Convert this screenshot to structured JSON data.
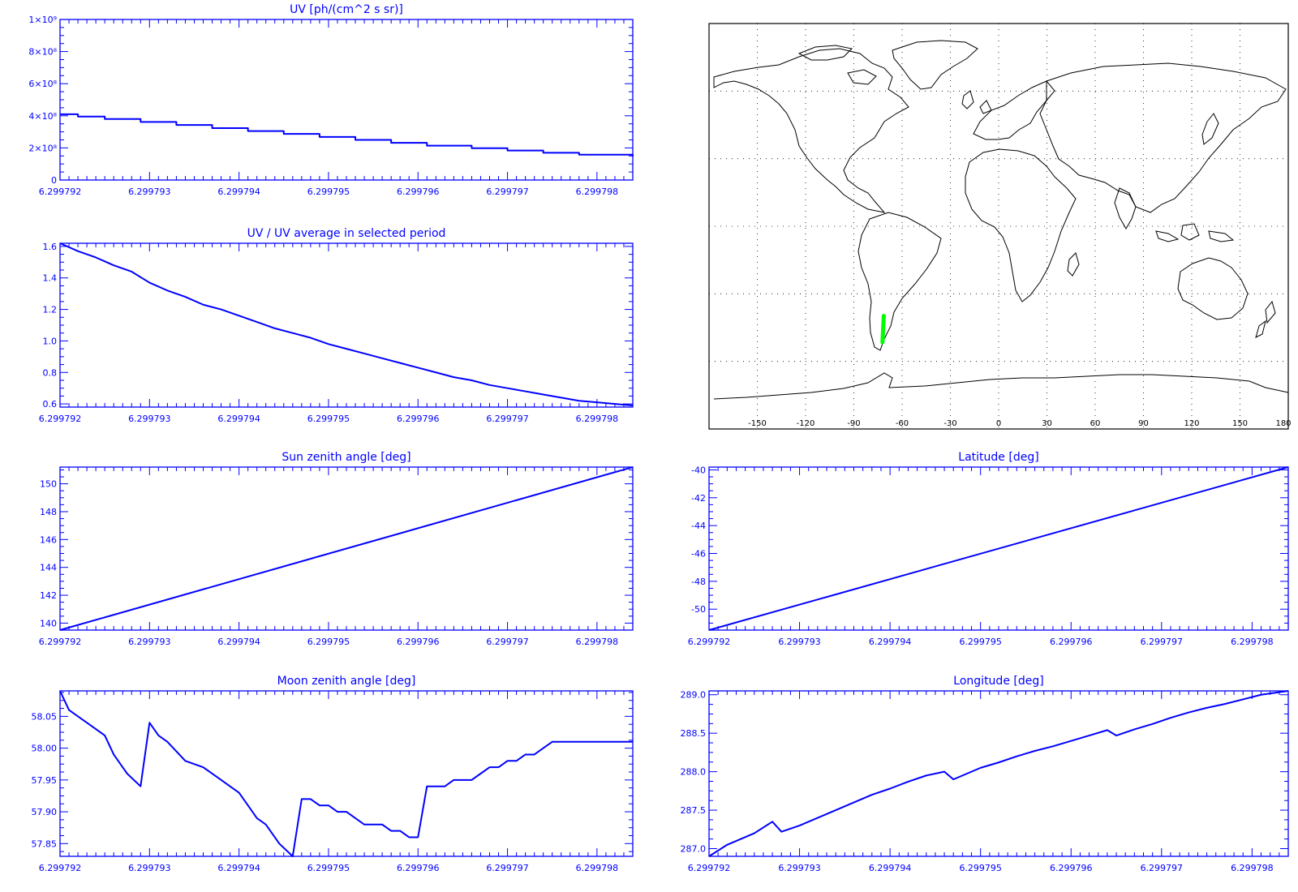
{
  "colors": {
    "axis": "#0000ff",
    "series": "#0000ff",
    "map_outline": "#000000",
    "track": "#00ff00"
  },
  "chart_data": [
    {
      "id": "uv",
      "type": "line",
      "step": true,
      "title": "UV [ph/(cm^2 s sr)]",
      "xlabel": "",
      "ylabel": "",
      "xlim": [
        6.299792,
        6.2997984
      ],
      "ylim": [
        0,
        1000000000
      ],
      "xticks": [
        6.299792,
        6.299793,
        6.299794,
        6.299795,
        6.299796,
        6.299797,
        6.299798
      ],
      "xtick_labels": [
        "6.299792",
        "6.299793",
        "6.299794",
        "6.299795",
        "6.299796",
        "6.299797",
        "6.299798"
      ],
      "yticks": [
        0,
        200000000,
        400000000,
        600000000,
        800000000,
        1000000000
      ],
      "ytick_labels": [
        "0",
        "2×10⁸",
        "4×10⁸",
        "6×10⁸",
        "8×10⁸",
        "1×10⁹"
      ],
      "series": [
        {
          "x": [
            6.299792,
            6.2997922,
            6.2997925,
            6.2997929,
            6.2997933,
            6.2997937,
            6.2997941,
            6.2997945,
            6.2997949,
            6.2997953,
            6.2997957,
            6.2997961,
            6.2997966,
            6.299797,
            6.2997974,
            6.2997978,
            6.2997984
          ],
          "y": [
            410000000,
            395000000,
            380000000,
            362000000,
            343000000,
            323000000,
            305000000,
            287000000,
            268000000,
            250000000,
            232000000,
            214000000,
            198000000,
            184000000,
            170000000,
            158000000,
            148000000
          ]
        }
      ]
    },
    {
      "id": "uvratio",
      "type": "line",
      "title": "UV / UV average in selected period",
      "xlabel": "",
      "ylabel": "",
      "xlim": [
        6.299792,
        6.2997984
      ],
      "ylim": [
        0.58,
        1.62
      ],
      "xticks": [
        6.299792,
        6.299793,
        6.299794,
        6.299795,
        6.299796,
        6.299797,
        6.299798
      ],
      "xtick_labels": [
        "6.299792",
        "6.299793",
        "6.299794",
        "6.299795",
        "6.299796",
        "6.299797",
        "6.299798"
      ],
      "yticks": [
        0.6,
        0.8,
        1.0,
        1.2,
        1.4,
        1.6
      ],
      "ytick_labels": [
        "0.6",
        "0.8",
        "1.0",
        "1.2",
        "1.4",
        "1.6"
      ],
      "series": [
        {
          "x": [
            6.299792,
            6.2997922,
            6.2997924,
            6.2997926,
            6.2997928,
            6.299793,
            6.2997932,
            6.2997934,
            6.2997936,
            6.2997938,
            6.299794,
            6.2997942,
            6.2997944,
            6.2997946,
            6.2997948,
            6.299795,
            6.2997952,
            6.2997954,
            6.2997956,
            6.2997958,
            6.299796,
            6.2997962,
            6.2997964,
            6.2997966,
            6.2997968,
            6.299797,
            6.2997972,
            6.2997974,
            6.2997976,
            6.2997978,
            6.299798,
            6.2997982,
            6.2997984
          ],
          "y": [
            1.62,
            1.57,
            1.53,
            1.48,
            1.44,
            1.37,
            1.32,
            1.28,
            1.23,
            1.2,
            1.16,
            1.12,
            1.08,
            1.05,
            1.02,
            0.98,
            0.95,
            0.92,
            0.89,
            0.86,
            0.83,
            0.8,
            0.77,
            0.75,
            0.72,
            0.7,
            0.68,
            0.66,
            0.64,
            0.62,
            0.61,
            0.6,
            0.59
          ]
        }
      ]
    },
    {
      "id": "sza",
      "type": "line",
      "title": "Sun zenith angle [deg]",
      "xlabel": "",
      "ylabel": "",
      "xlim": [
        6.299792,
        6.2997984
      ],
      "ylim": [
        139.5,
        151.2
      ],
      "xticks": [
        6.299792,
        6.299793,
        6.299794,
        6.299795,
        6.299796,
        6.299797,
        6.299798
      ],
      "xtick_labels": [
        "6.299792",
        "6.299793",
        "6.299794",
        "6.299795",
        "6.299796",
        "6.299797",
        "6.299798"
      ],
      "yticks": [
        140,
        142,
        144,
        146,
        148,
        150
      ],
      "ytick_labels": [
        "140",
        "142",
        "144",
        "146",
        "148",
        "150"
      ],
      "series": [
        {
          "x": [
            6.299792,
            6.2997984
          ],
          "y": [
            139.5,
            151.2
          ]
        }
      ]
    },
    {
      "id": "lat",
      "type": "line",
      "title": "Latitude [deg]",
      "xlabel": "",
      "ylabel": "",
      "xlim": [
        6.299792,
        6.2997984
      ],
      "ylim": [
        -51.5,
        -39.8
      ],
      "xticks": [
        6.299792,
        6.299793,
        6.299794,
        6.299795,
        6.299796,
        6.299797,
        6.299798
      ],
      "xtick_labels": [
        "6.299792",
        "6.299793",
        "6.299794",
        "6.299795",
        "6.299796",
        "6.299797",
        "6.299798"
      ],
      "yticks": [
        -50,
        -48,
        -46,
        -44,
        -42,
        -40
      ],
      "ytick_labels": [
        "-50",
        "-48",
        "-46",
        "-44",
        "-42",
        "-40"
      ],
      "series": [
        {
          "x": [
            6.299792,
            6.2997984
          ],
          "y": [
            -51.5,
            -39.8
          ]
        }
      ]
    },
    {
      "id": "mza",
      "type": "line",
      "title": "Moon zenith angle [deg]",
      "xlabel": "",
      "ylabel": "",
      "xlim": [
        6.299792,
        6.2997984
      ],
      "ylim": [
        57.83,
        58.09
      ],
      "xticks": [
        6.299792,
        6.299793,
        6.299794,
        6.299795,
        6.299796,
        6.299797,
        6.299798
      ],
      "xtick_labels": [
        "6.299792",
        "6.299793",
        "6.299794",
        "6.299795",
        "6.299796",
        "6.299797",
        "6.299798"
      ],
      "yticks": [
        57.85,
        57.9,
        57.95,
        58.0,
        58.05
      ],
      "ytick_labels": [
        "57.85",
        "57.90",
        "57.95",
        "58.00",
        "58.05"
      ],
      "series": [
        {
          "x": [
            6.299792,
            6.2997921,
            6.2997923,
            6.2997925,
            6.2997926,
            6.2997927,
            6.29979275,
            6.2997929,
            6.299793,
            6.2997931,
            6.2997932,
            6.2997934,
            6.2997936,
            6.2997938,
            6.2997939,
            6.299794,
            6.2997941,
            6.2997942,
            6.2997943,
            6.2997944,
            6.29979445,
            6.2997946,
            6.2997947,
            6.2997948,
            6.2997949,
            6.299795,
            6.2997951,
            6.2997952,
            6.2997953,
            6.2997954,
            6.2997955,
            6.2997956,
            6.2997957,
            6.2997958,
            6.2997959,
            6.299796,
            6.2997961,
            6.29979615,
            6.2997963,
            6.2997964,
            6.2997965,
            6.2997966,
            6.2997967,
            6.2997968,
            6.2997969,
            6.299797,
            6.2997971,
            6.2997972,
            6.2997973,
            6.2997974,
            6.2997975,
            6.2997976,
            6.2997977,
            6.2997978,
            6.2997979,
            6.299798,
            6.2997981,
            6.2997982,
            6.2997983,
            6.2997984
          ],
          "y": [
            58.09,
            58.06,
            58.04,
            58.02,
            57.99,
            57.97,
            57.96,
            57.94,
            58.04,
            58.02,
            58.01,
            57.98,
            57.97,
            57.95,
            57.94,
            57.93,
            57.91,
            57.89,
            57.88,
            57.86,
            57.85,
            57.83,
            57.92,
            57.92,
            57.91,
            57.91,
            57.9,
            57.9,
            57.89,
            57.88,
            57.88,
            57.88,
            57.87,
            57.87,
            57.86,
            57.86,
            57.94,
            57.94,
            57.94,
            57.95,
            57.95,
            57.95,
            57.96,
            57.97,
            57.97,
            57.98,
            57.98,
            57.99,
            57.99,
            58.0,
            58.01,
            58.01,
            58.01,
            58.01,
            58.01,
            58.01,
            58.01,
            58.01,
            58.01,
            58.01
          ]
        }
      ]
    },
    {
      "id": "lon",
      "type": "line",
      "title": "Longitude [deg]",
      "xlabel": "",
      "ylabel": "",
      "xlim": [
        6.299792,
        6.2997984
      ],
      "ylim": [
        286.9,
        289.05
      ],
      "xticks": [
        6.299792,
        6.299793,
        6.299794,
        6.299795,
        6.299796,
        6.299797,
        6.299798
      ],
      "xtick_labels": [
        "6.299792",
        "6.299793",
        "6.299794",
        "6.299795",
        "6.299796",
        "6.299797",
        "6.299798"
      ],
      "yticks": [
        287.0,
        287.5,
        288.0,
        288.5,
        289.0
      ],
      "ytick_labels": [
        "287.0",
        "287.5",
        "288.0",
        "288.5",
        "289.0"
      ],
      "series": [
        {
          "x": [
            6.299792,
            6.2997922,
            6.2997925,
            6.2997927,
            6.2997928,
            6.299793,
            6.2997932,
            6.2997934,
            6.2997936,
            6.2997938,
            6.299794,
            6.2997942,
            6.2997944,
            6.2997946,
            6.2997947,
            6.2997949,
            6.299795,
            6.2997952,
            6.2997954,
            6.2997956,
            6.2997958,
            6.299796,
            6.2997962,
            6.2997964,
            6.2997965,
            6.2997967,
            6.2997969,
            6.2997971,
            6.2997973,
            6.2997975,
            6.2997977,
            6.2997979,
            6.2997981,
            6.2997984
          ],
          "y": [
            286.9,
            287.05,
            287.2,
            287.35,
            287.22,
            287.3,
            287.4,
            287.5,
            287.6,
            287.7,
            287.78,
            287.87,
            287.95,
            288.0,
            287.9,
            288.0,
            288.05,
            288.12,
            288.2,
            288.27,
            288.33,
            288.4,
            288.47,
            288.54,
            288.47,
            288.55,
            288.62,
            288.7,
            288.77,
            288.83,
            288.88,
            288.94,
            289.0,
            289.05
          ]
        }
      ]
    }
  ],
  "map": {
    "projection": "equirectangular",
    "lon_ticks": [
      "-150",
      "-120",
      "-90",
      "-60",
      "-30",
      "0",
      "30",
      "60",
      "90",
      "120",
      "150",
      "180"
    ],
    "track": {
      "lon": [
        -72.2,
        -71.4
      ],
      "lat": [
        -51.5,
        -39.8
      ]
    }
  }
}
